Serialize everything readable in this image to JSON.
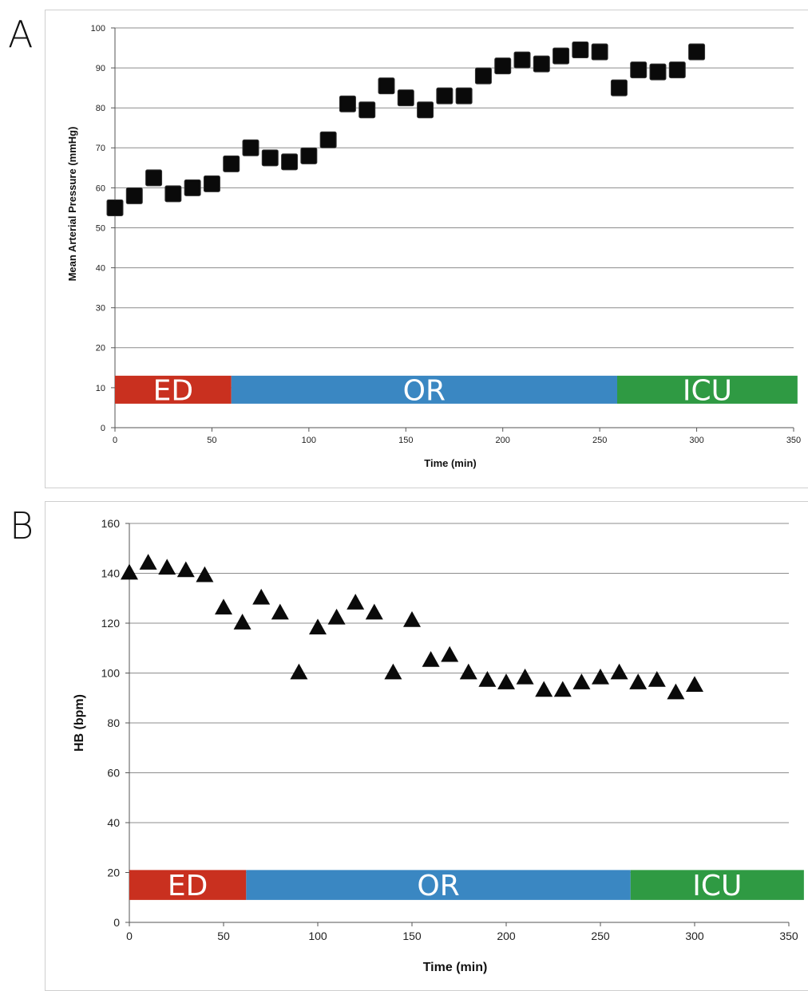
{
  "panels": [
    {
      "letter": "A",
      "chart_data": {
        "type": "scatter",
        "marker": "square",
        "xlabel": "Time (min)",
        "ylabel": "Mean Arterial Pressure (mmHg)",
        "xlim": [
          0,
          350
        ],
        "ylim": [
          0,
          100
        ],
        "xticks": [
          0,
          50,
          100,
          150,
          200,
          250,
          300,
          350
        ],
        "yticks": [
          0,
          10,
          20,
          30,
          40,
          50,
          60,
          70,
          80,
          90,
          100
        ],
        "grid": "horizontal",
        "series": [
          {
            "x": [
              0,
              10,
              20,
              30,
              40,
              50,
              60,
              70,
              80,
              90,
              100,
              110,
              120,
              130,
              140,
              150,
              160,
              170,
              180,
              190,
              200,
              210,
              220,
              230,
              240,
              250,
              260,
              270,
              280,
              290,
              300
            ],
            "y": [
              55,
              58,
              62.5,
              58.5,
              60,
              61,
              66,
              70,
              67.5,
              66.5,
              68,
              72,
              81,
              79.5,
              85.5,
              82.5,
              79.5,
              83,
              83,
              88,
              90.5,
              92,
              91,
              93,
              94.5,
              94,
              85,
              89.5,
              89,
              89.5,
              94
            ]
          }
        ],
        "phases": [
          {
            "label": "ED",
            "start": 0,
            "end": 60,
            "color": "#c9301f"
          },
          {
            "label": "OR",
            "start": 60,
            "end": 259,
            "color": "#3a87c2"
          },
          {
            "label": "ICU",
            "start": 259,
            "end": 352,
            "color": "#2f9a43"
          }
        ],
        "phase_band": [
          6,
          13
        ]
      }
    },
    {
      "letter": "B",
      "chart_data": {
        "type": "scatter",
        "marker": "triangle",
        "xlabel": "Time (min)",
        "ylabel": "HB (bpm)",
        "xlim": [
          0,
          350
        ],
        "ylim": [
          0,
          160
        ],
        "xticks": [
          0,
          50,
          100,
          150,
          200,
          250,
          300,
          350
        ],
        "yticks": [
          0,
          20,
          40,
          60,
          80,
          100,
          120,
          140,
          160
        ],
        "grid": "horizontal",
        "series": [
          {
            "x": [
              0,
              10,
              20,
              30,
              40,
              50,
              60,
              70,
              80,
              90,
              100,
              110,
              120,
              130,
              140,
              150,
              160,
              170,
              180,
              190,
              200,
              210,
              220,
              230,
              240,
              250,
              260,
              270,
              280,
              290,
              300
            ],
            "y": [
              140,
              144,
              142,
              141,
              139,
              126,
              120,
              130,
              124,
              100,
              118,
              122,
              128,
              124,
              100,
              121,
              105,
              107,
              100,
              97,
              96,
              98,
              93,
              93,
              96,
              98,
              100,
              96,
              97,
              92,
              95
            ]
          }
        ],
        "phases": [
          {
            "label": "ED",
            "start": 0,
            "end": 62,
            "color": "#c9301f"
          },
          {
            "label": "OR",
            "start": 62,
            "end": 266,
            "color": "#3a87c2"
          },
          {
            "label": "ICU",
            "start": 266,
            "end": 358,
            "color": "#2f9a43"
          }
        ],
        "phase_band": [
          9,
          21
        ]
      }
    }
  ]
}
